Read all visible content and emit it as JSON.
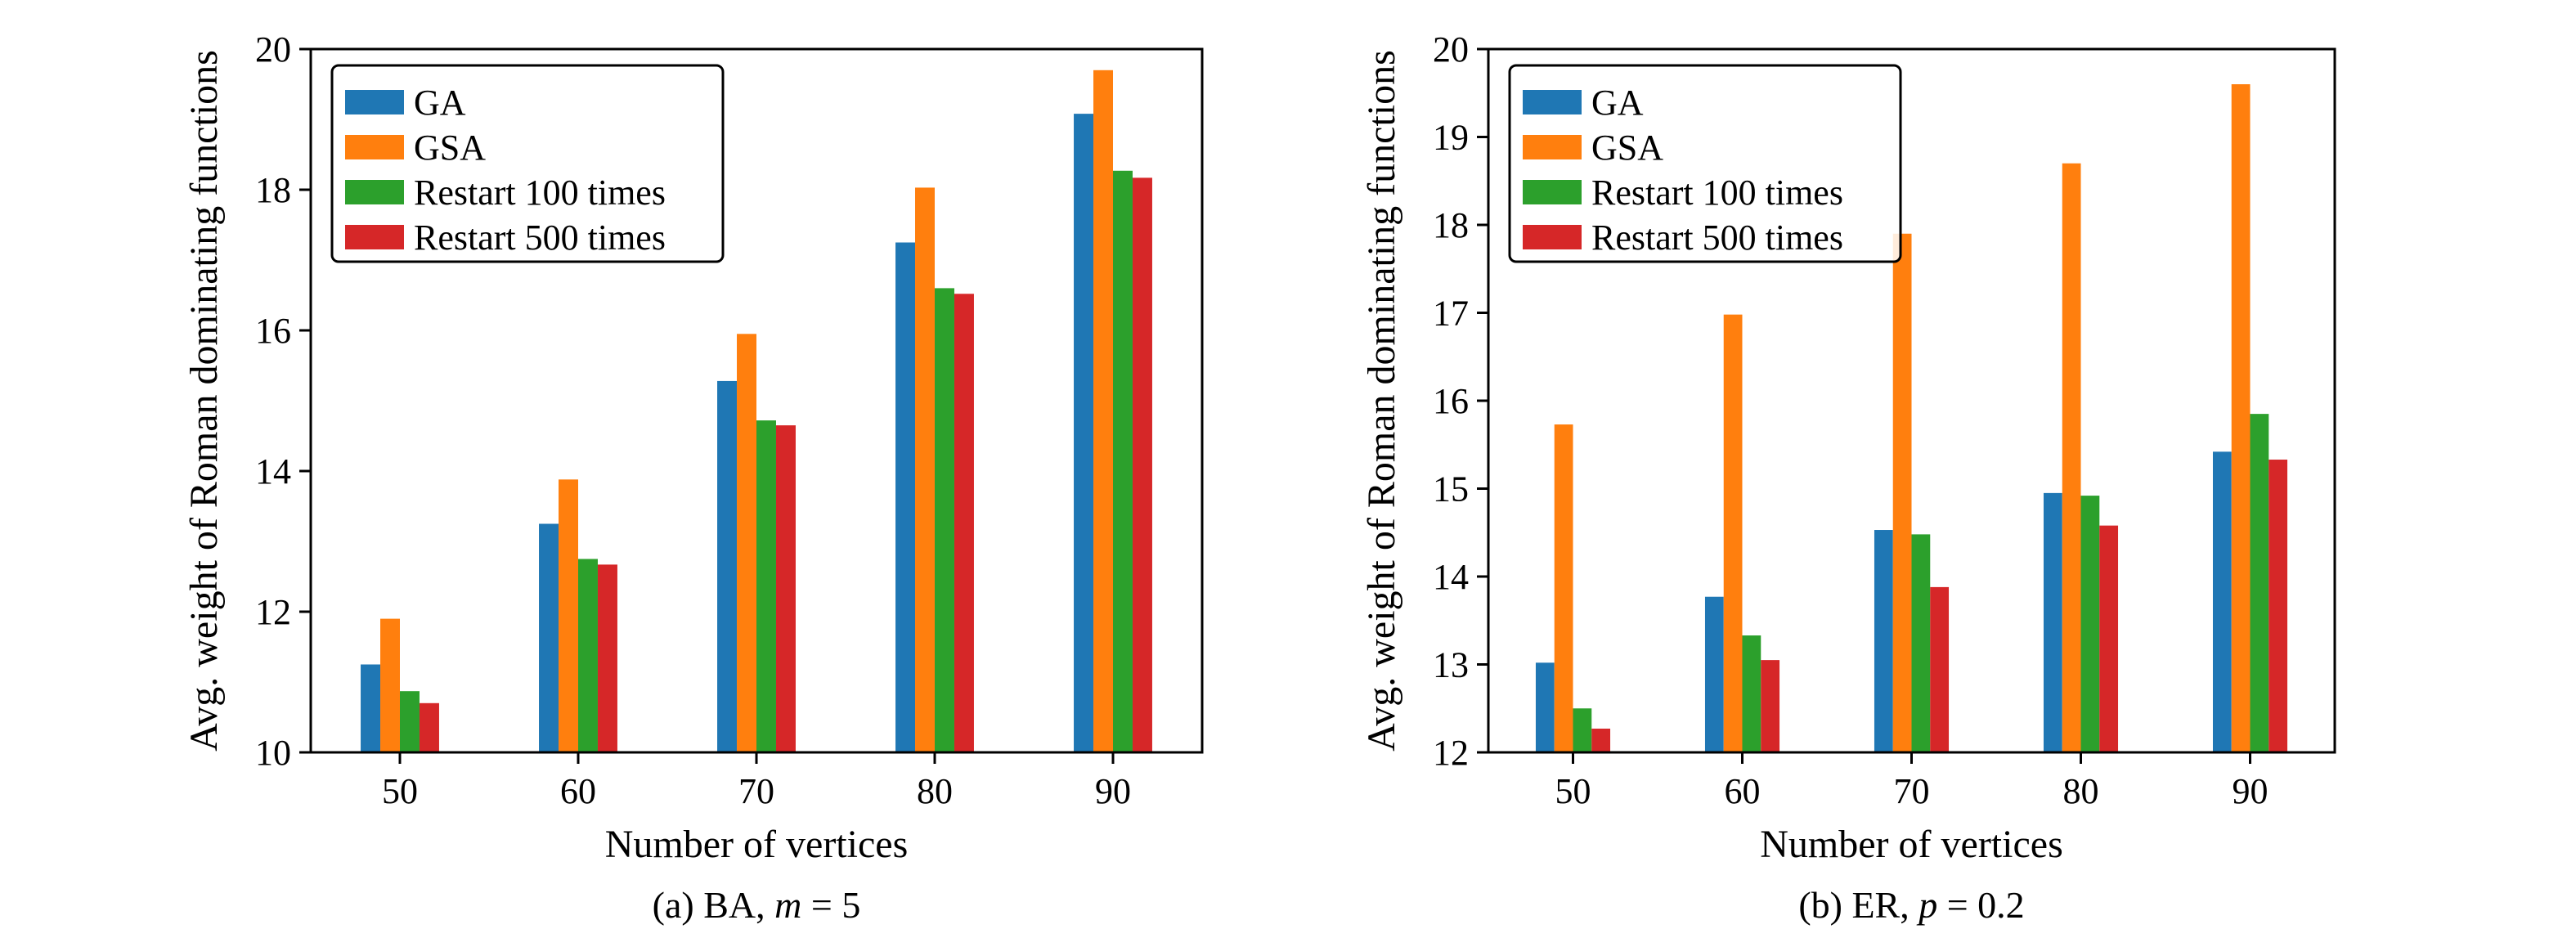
{
  "colors": {
    "GA": "#1f77b4",
    "GSA": "#ff7f0e",
    "Restart 100 times": "#2ca02c",
    "Restart 500 times": "#d62728"
  },
  "chart_data": [
    {
      "type": "bar",
      "caption_prefix": "(a) BA, ",
      "caption_var": "m",
      "caption_suffix": " = 5",
      "xlabel": "Number of vertices",
      "ylabel": "Avg. weight of Roman dominating functions",
      "categories": [
        "50",
        "60",
        "70",
        "80",
        "90"
      ],
      "ylim": [
        10,
        20
      ],
      "yticks": [
        "10",
        "12",
        "14",
        "16",
        "18",
        "20"
      ],
      "legend_position": "upper-left",
      "series": [
        {
          "name": "GA",
          "values": [
            11.25,
            13.25,
            15.28,
            17.25,
            19.08
          ]
        },
        {
          "name": "GSA",
          "values": [
            11.9,
            13.88,
            15.95,
            18.03,
            19.7
          ]
        },
        {
          "name": "Restart 100 times",
          "values": [
            10.87,
            12.75,
            14.72,
            16.6,
            18.27
          ]
        },
        {
          "name": "Restart 500 times",
          "values": [
            10.7,
            12.67,
            14.65,
            16.52,
            18.17
          ]
        }
      ]
    },
    {
      "type": "bar",
      "caption_prefix": "(b) ER, ",
      "caption_var": "p",
      "caption_suffix": " = 0.2",
      "xlabel": "Number of vertices",
      "ylabel": "Avg. weight of Roman dominating functions",
      "categories": [
        "50",
        "60",
        "70",
        "80",
        "90"
      ],
      "ylim": [
        12,
        20
      ],
      "yticks": [
        "12",
        "13",
        "14",
        "15",
        "16",
        "17",
        "18",
        "19",
        "20"
      ],
      "legend_position": "upper-left",
      "series": [
        {
          "name": "GA",
          "values": [
            13.02,
            13.77,
            14.53,
            14.95,
            15.42
          ]
        },
        {
          "name": "GSA",
          "values": [
            15.73,
            16.98,
            17.9,
            18.7,
            19.6
          ]
        },
        {
          "name": "Restart 100 times",
          "values": [
            12.5,
            13.33,
            14.48,
            14.92,
            15.85
          ]
        },
        {
          "name": "Restart 500 times",
          "values": [
            12.27,
            13.05,
            13.88,
            14.58,
            15.33
          ]
        }
      ]
    }
  ]
}
